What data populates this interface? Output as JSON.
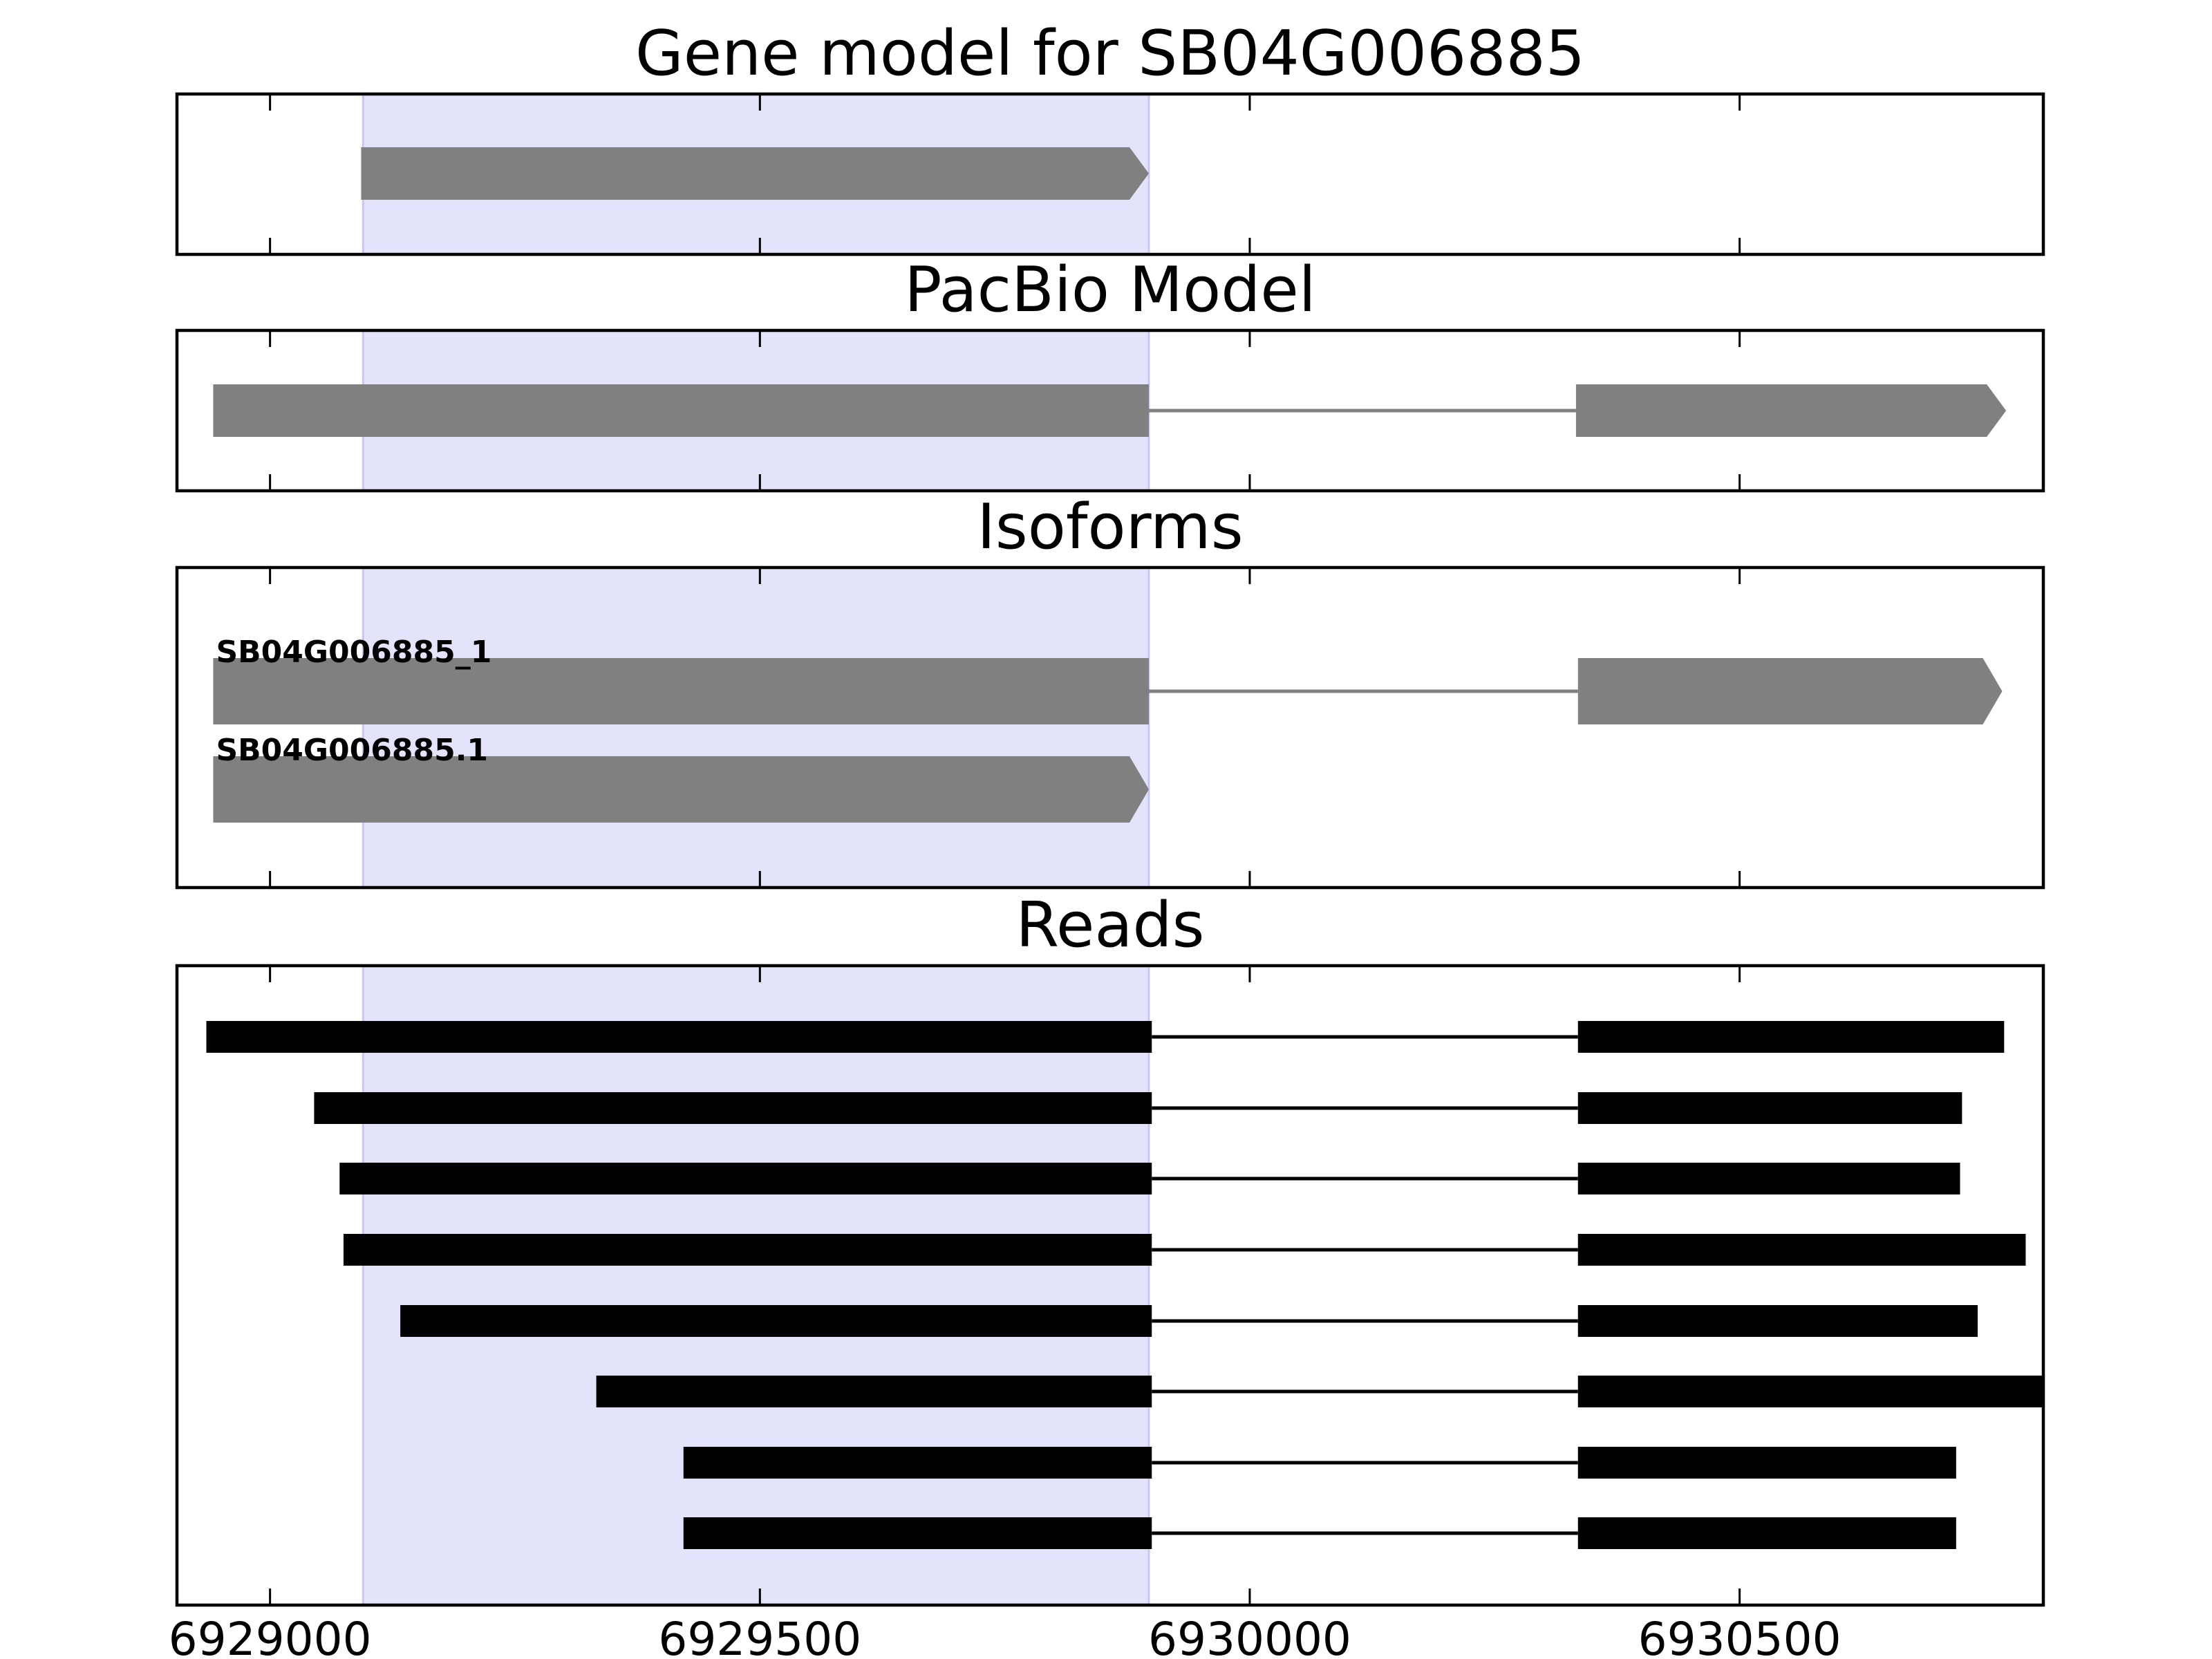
{
  "chart_data": {
    "type": "gene-track",
    "x_axis": {
      "range": [
        6928905,
        6930810
      ],
      "ticks": [
        6929000,
        6929500,
        6930000,
        6930500
      ],
      "tick_labels": [
        "6929000",
        "6929500",
        "6930000",
        "6930500"
      ]
    },
    "highlight_region": {
      "start": 6929095,
      "end": 6929897,
      "color": "#e3e3fb"
    },
    "colors": {
      "exon": "#808080",
      "read": "#000000",
      "highlight": "#e3e3fb",
      "frame": "#000000"
    },
    "panels": [
      {
        "title": "Gene model for SB04G006885",
        "features": [
          {
            "exons": [
              [
                6929093,
                6929897
              ]
            ],
            "strand": "+"
          }
        ]
      },
      {
        "title": "PacBio Model",
        "features": [
          {
            "exons": [
              [
                6928942,
                6929897
              ],
              [
                6930333,
                6930772
              ]
            ],
            "strand": "+"
          }
        ]
      },
      {
        "title": "Isoforms",
        "features": [
          {
            "label": "SB04G006885_1",
            "exons": [
              [
                6928942,
                6929897
              ],
              [
                6930335,
                6930768
              ]
            ],
            "strand": "+"
          },
          {
            "label": "SB04G006885.1",
            "exons": [
              [
                6928942,
                6929897
              ]
            ],
            "strand": "+"
          }
        ]
      },
      {
        "title": "Reads",
        "reads": [
          {
            "exons": [
              [
                6928935,
                6929900
              ],
              [
                6930335,
                6930770
              ]
            ]
          },
          {
            "exons": [
              [
                6929045,
                6929900
              ],
              [
                6930335,
                6930727
              ]
            ]
          },
          {
            "exons": [
              [
                6929071,
                6929900
              ],
              [
                6930335,
                6930725
              ]
            ]
          },
          {
            "exons": [
              [
                6929075,
                6929900
              ],
              [
                6930335,
                6930792
              ]
            ]
          },
          {
            "exons": [
              [
                6929133,
                6929900
              ],
              [
                6930335,
                6930743
              ]
            ]
          },
          {
            "exons": [
              [
                6929333,
                6929900
              ],
              [
                6930335,
                6930810
              ]
            ]
          },
          {
            "exons": [
              [
                6929422,
                6929900
              ],
              [
                6930335,
                6930721
              ]
            ]
          },
          {
            "exons": [
              [
                6929422,
                6929900
              ],
              [
                6930335,
                6930721
              ]
            ]
          }
        ]
      }
    ]
  }
}
